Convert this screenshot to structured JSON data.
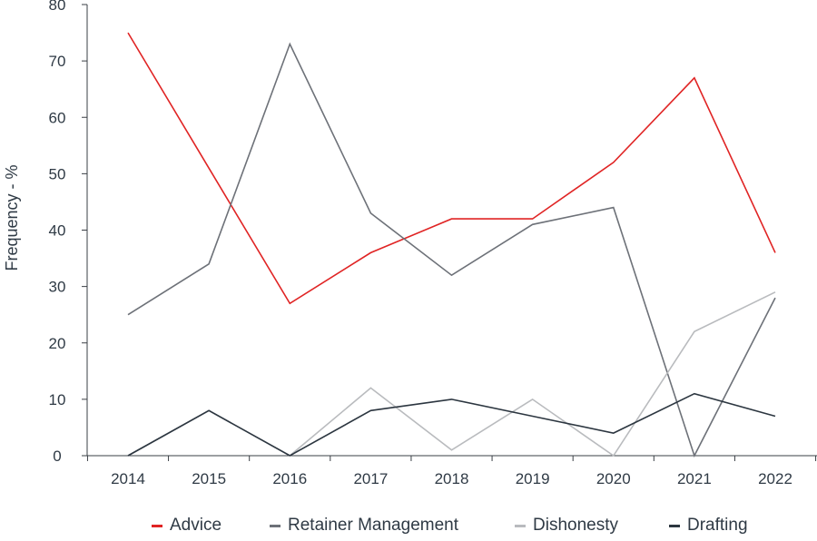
{
  "chart_data": {
    "type": "line",
    "title": "",
    "xlabel": "",
    "ylabel": "Frequency - %",
    "categories": [
      "2014",
      "2015",
      "2016",
      "2017",
      "2018",
      "2019",
      "2020",
      "2021",
      "2022"
    ],
    "ylim": [
      0,
      80
    ],
    "yticks": [
      "0",
      "10",
      "20",
      "30",
      "40",
      "50",
      "60",
      "70",
      "80"
    ],
    "grid": false,
    "legend_position": "bottom",
    "series": [
      {
        "name": "Advice",
        "color": "#e02424",
        "values": [
          75,
          51,
          27,
          36,
          42,
          42,
          52,
          67,
          36
        ]
      },
      {
        "name": "Retainer Management",
        "color": "#6d7178",
        "values": [
          25,
          34,
          73,
          43,
          32,
          41,
          44,
          0,
          28
        ]
      },
      {
        "name": "Dishonesty",
        "color": "#b9bbbe",
        "values": [
          0,
          8,
          0,
          12,
          1,
          10,
          0,
          22,
          29
        ]
      },
      {
        "name": "Drafting",
        "color": "#2c3640",
        "values": [
          0,
          8,
          0,
          8,
          10,
          7,
          4,
          11,
          7
        ]
      }
    ]
  }
}
